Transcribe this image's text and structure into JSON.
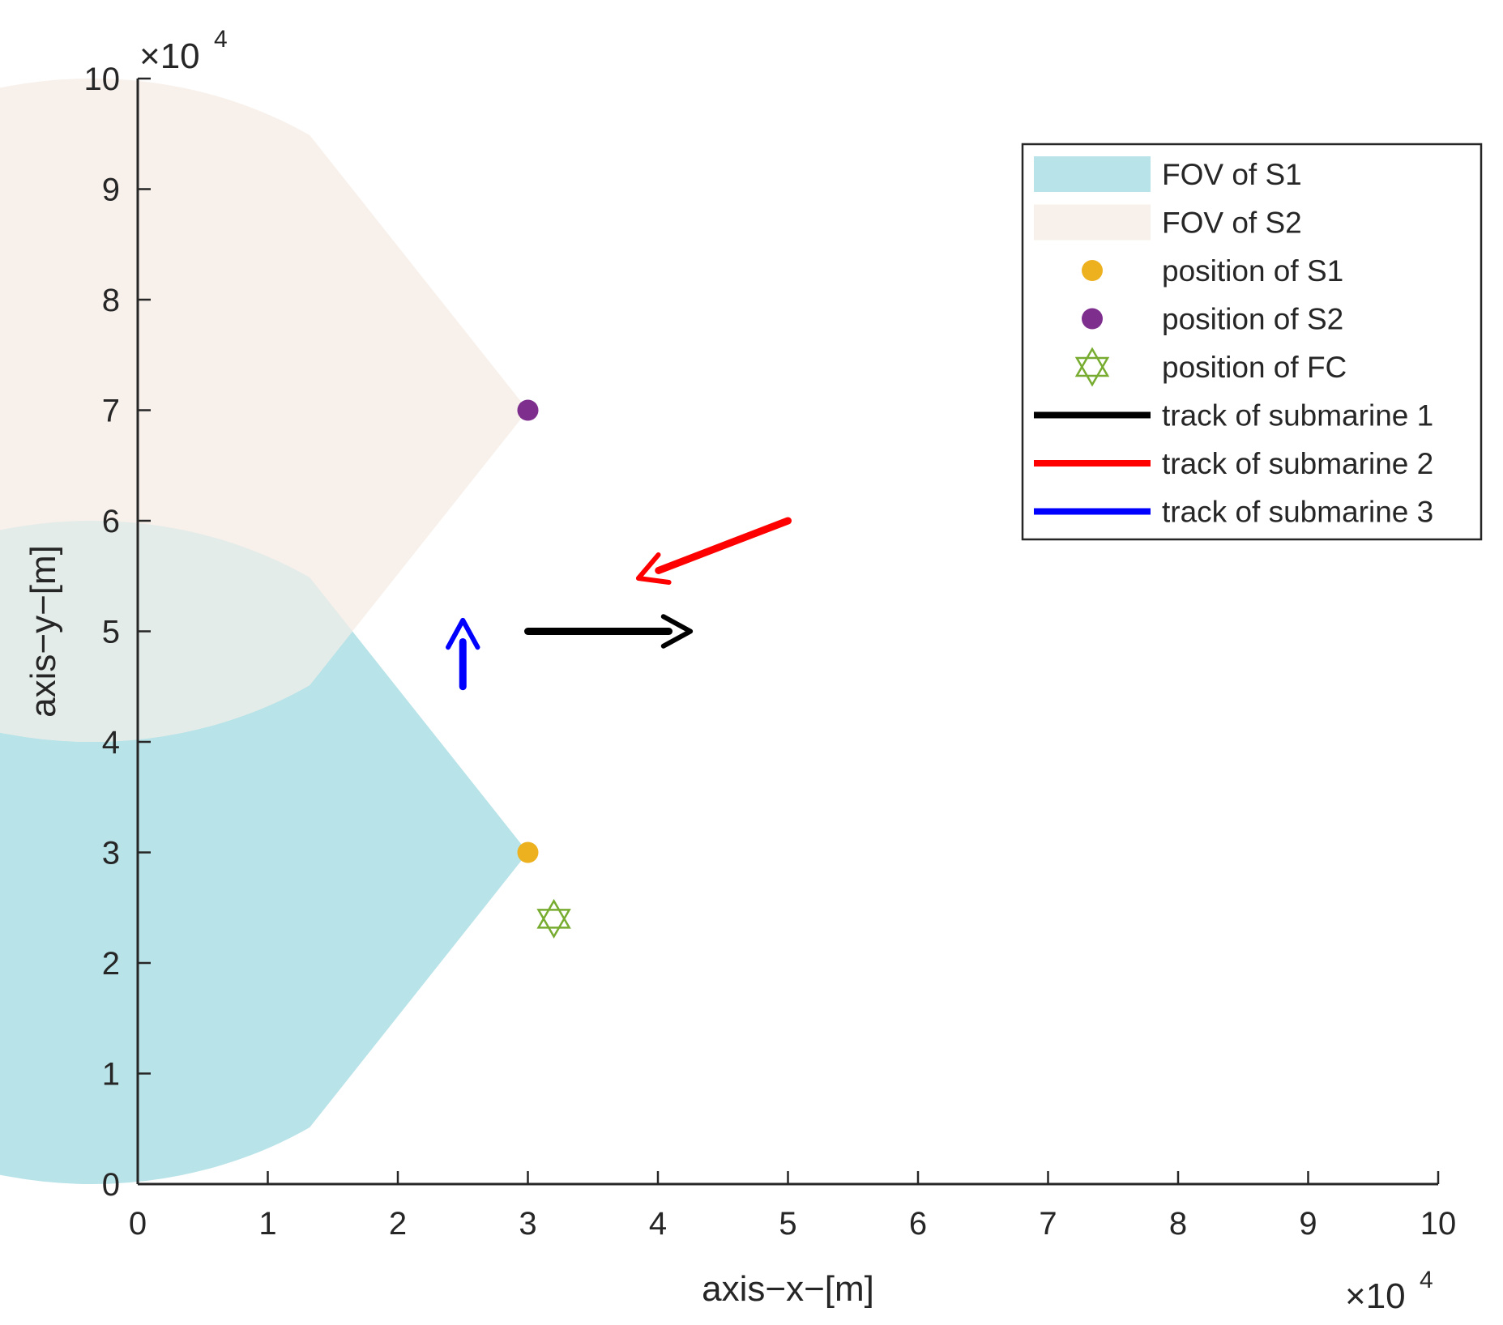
{
  "chart_data": {
    "type": "scatter",
    "title": "",
    "xlabel": "axis−x−[m]",
    "ylabel": "axis−y−[m]",
    "xlim": [
      0,
      100000
    ],
    "ylim": [
      0,
      100000
    ],
    "x_ticks": [
      0,
      1,
      2,
      3,
      4,
      5,
      6,
      7,
      8,
      9,
      10
    ],
    "y_ticks": [
      0,
      1,
      2,
      3,
      4,
      5,
      6,
      7,
      8,
      9,
      10
    ],
    "x_exponent_label": "×10",
    "x_exponent_power": "4",
    "y_exponent_label": "×10",
    "y_exponent_power": "4",
    "grid": false,
    "legend_position": "top-right",
    "fov": [
      {
        "name": "FOV of S1",
        "center": [
          30000,
          30000
        ],
        "radius": 30000,
        "gap_half_angle_deg": 56,
        "gap_direction_deg": 180,
        "color": "#b8e3e8"
      },
      {
        "name": "FOV of S2",
        "center": [
          30000,
          70000
        ],
        "radius": 30000,
        "gap_half_angle_deg": 56,
        "gap_direction_deg": 180,
        "color": "#f8f0ea"
      }
    ],
    "overlap_color": "#e4ece9",
    "points": [
      {
        "name": "position of S1",
        "x": 30000,
        "y": 30000,
        "color": "#edb120",
        "marker": "circle"
      },
      {
        "name": "position of S2",
        "x": 30000,
        "y": 70000,
        "color": "#7e2f8e",
        "marker": "circle"
      },
      {
        "name": "position of FC",
        "x": 32000,
        "y": 24000,
        "color": "#77ac30",
        "marker": "hexagram"
      }
    ],
    "tracks": [
      {
        "name": "track of submarine 1",
        "color": "#000000",
        "x": [
          30000,
          42500
        ],
        "y": [
          50000,
          50000
        ]
      },
      {
        "name": "track of submarine 2",
        "color": "#ff0000",
        "x": [
          50000,
          38500
        ],
        "y": [
          60000,
          54800
        ]
      },
      {
        "name": "track of submarine 3",
        "color": "#0000ff",
        "x": [
          25000,
          25000
        ],
        "y": [
          45000,
          51000
        ]
      }
    ],
    "legend": [
      "FOV of S1",
      "FOV of S2",
      "position of S1",
      "position of S2",
      "position of FC",
      "track of submarine 1",
      "track of submarine 2",
      "track of submarine 3"
    ]
  }
}
